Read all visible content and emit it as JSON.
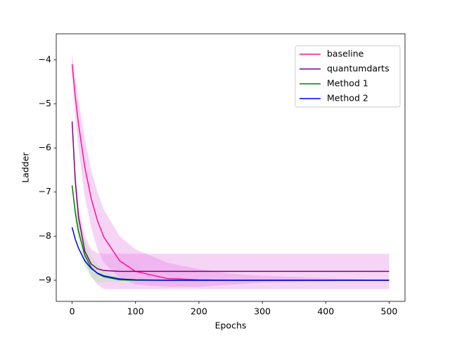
{
  "chart_data": {
    "type": "line",
    "xlabel": "Epochs",
    "ylabel": "Ladder",
    "x": [
      0,
      5,
      10,
      20,
      30,
      40,
      50,
      75,
      100,
      150,
      200,
      250,
      300,
      400,
      500
    ],
    "xlim": [
      -25,
      525
    ],
    "xticks": [
      0,
      100,
      200,
      300,
      400,
      500
    ],
    "ylim": [
      -9.48,
      -3.41
    ],
    "yticks": [
      {
        "value": -9,
        "label": "−9"
      },
      {
        "value": -8,
        "label": "−8"
      },
      {
        "value": -7,
        "label": "−7"
      },
      {
        "value": -6,
        "label": "−6"
      },
      {
        "value": -5,
        "label": "−5"
      },
      {
        "value": -4,
        "label": "−4"
      }
    ],
    "legend": "upper right",
    "series": [
      {
        "name": "baseline",
        "color": "#ff1493",
        "band_color": "#e070e0",
        "values": [
          -4.1,
          -4.83,
          -5.45,
          -6.43,
          -7.14,
          -7.65,
          -8.02,
          -8.56,
          -8.8,
          -8.96,
          -8.99,
          -9.0,
          -9.0,
          -9.0,
          -9.0
        ],
        "upper": [
          -3.85,
          -4.4,
          -4.9,
          -5.8,
          -6.5,
          -7.0,
          -7.4,
          -8.0,
          -8.3,
          -8.6,
          -8.75,
          -8.85,
          -8.9,
          -8.95,
          -9.0
        ],
        "lower": [
          -4.35,
          -5.3,
          -6.0,
          -7.1,
          -7.8,
          -8.3,
          -8.6,
          -8.95,
          -9.1,
          -9.15,
          -9.15,
          -9.1,
          -9.05,
          -9.02,
          -9.0
        ]
      },
      {
        "name": "quantumdarts",
        "color": "#800080",
        "band_color": "#e070e0",
        "values": [
          -5.4,
          -6.74,
          -7.55,
          -8.34,
          -8.63,
          -8.74,
          -8.78,
          -8.8,
          -8.8,
          -8.8,
          -8.8,
          -8.8,
          -8.8,
          -8.8,
          -8.8
        ],
        "upper": [
          -5.2,
          -6.5,
          -7.3,
          -8.0,
          -8.3,
          -8.38,
          -8.4,
          -8.4,
          -8.4,
          -8.4,
          -8.4,
          -8.4,
          -8.4,
          -8.4,
          -8.4
        ],
        "lower": [
          -5.6,
          -7.0,
          -7.8,
          -8.6,
          -8.9,
          -9.1,
          -9.2,
          -9.2,
          -9.2,
          -9.2,
          -9.2,
          -9.2,
          -9.2,
          -9.2,
          -9.2
        ]
      },
      {
        "name": "Method 1",
        "color": "#008000",
        "band_color": "#90ee90",
        "values": [
          -6.85,
          -7.46,
          -7.89,
          -8.43,
          -8.71,
          -8.85,
          -8.92,
          -8.99,
          -9.0,
          -9.0,
          -9.0,
          -9.0,
          -9.0,
          -9.0,
          -9.0
        ],
        "upper": [
          -6.8,
          -7.3,
          -7.6,
          -8.1,
          -8.45,
          -8.65,
          -8.8,
          -8.93,
          -8.98,
          -9.0,
          -9.0,
          -9.0,
          -9.0,
          -9.0,
          -9.0
        ],
        "lower": [
          -6.9,
          -7.7,
          -8.1,
          -8.7,
          -8.95,
          -9.05,
          -9.05,
          -9.03,
          -9.01,
          -9.0,
          -9.0,
          -9.0,
          -9.0,
          -9.0,
          -9.0
        ]
      },
      {
        "name": "Method 2",
        "color": "#0000ff",
        "values": [
          -7.8,
          -8.07,
          -8.27,
          -8.56,
          -8.73,
          -8.84,
          -8.9,
          -8.97,
          -8.99,
          -9.0,
          -9.0,
          -9.0,
          -9.0,
          -9.0,
          -9.0
        ]
      }
    ]
  }
}
